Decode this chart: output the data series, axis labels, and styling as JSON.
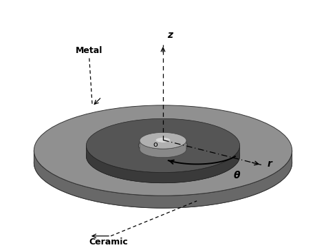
{
  "background_color": "#ffffff",
  "disk_top_color": "#909090",
  "disk_side_color": "#686868",
  "disk_bottom_color": "#787878",
  "inner_ring_top_color": "#555555",
  "inner_ring_side_color": "#3a3a3a",
  "hub_top_color": "#b0b0b0",
  "hub_side_color": "#888888",
  "center_color": "#d8d8d8",
  "label_metal": "Metal",
  "label_ceramic": "Ceramic",
  "label_z": "z",
  "label_r": "r",
  "label_theta": "θ",
  "label_o": "o"
}
